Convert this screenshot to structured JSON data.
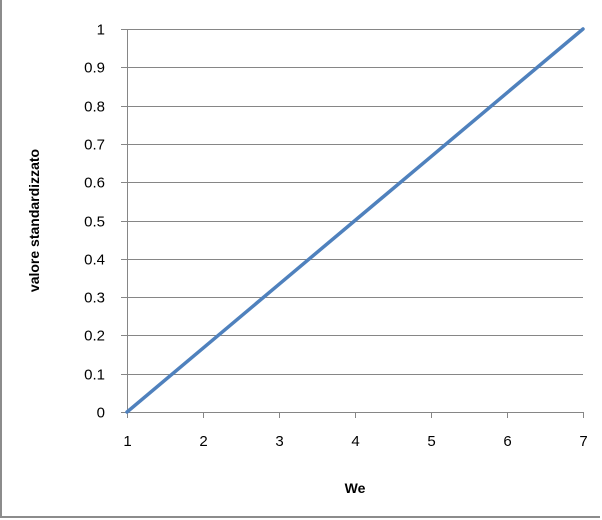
{
  "chart_data": {
    "type": "line",
    "title": "",
    "xlabel": "We",
    "ylabel": "valore standardizzato",
    "xlim": [
      1,
      7
    ],
    "ylim": [
      0,
      1
    ],
    "x_ticks": [
      1,
      2,
      3,
      4,
      5,
      6,
      7
    ],
    "y_ticks": [
      0,
      0.1,
      0.2,
      0.3,
      0.4,
      0.5,
      0.6,
      0.7,
      0.8,
      0.9,
      1
    ],
    "grid": "horizontal",
    "legend": "none",
    "series": [
      {
        "color": "#4f81bd",
        "x": [
          1,
          2,
          3,
          4,
          5,
          6,
          7
        ],
        "y": [
          0,
          0.1667,
          0.3333,
          0.5,
          0.6667,
          0.8333,
          1
        ]
      }
    ]
  }
}
